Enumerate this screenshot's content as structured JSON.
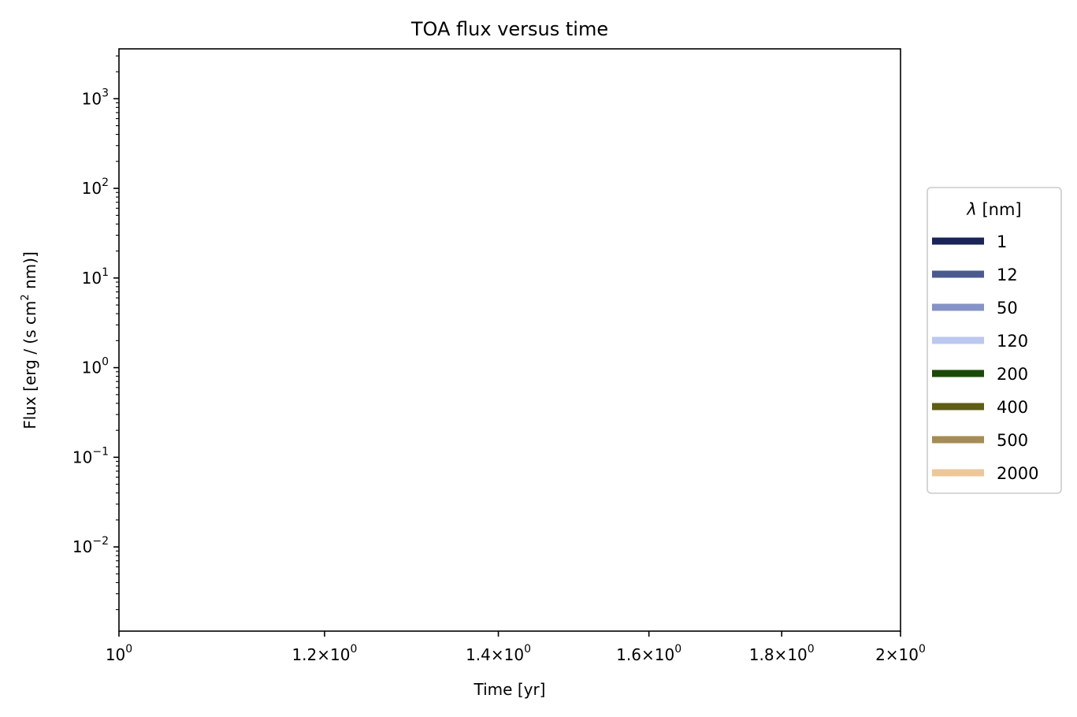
{
  "chart_data": {
    "type": "line",
    "title": "TOA flux versus time",
    "xlabel": "Time [yr]",
    "ylabel_parts": [
      "Flux [erg / (s cm",
      "2",
      " nm)]"
    ],
    "x_scale": "log",
    "y_scale": "log",
    "xlim": [
      1,
      2
    ],
    "ylim": [
      0.00115,
      3600
    ],
    "x_ticks": [
      {
        "value": 1,
        "mantissa": "",
        "exponent": "0"
      },
      {
        "value": 1.2,
        "mantissa": "1.2",
        "exponent": "0"
      },
      {
        "value": 1.4,
        "mantissa": "1.4",
        "exponent": "0"
      },
      {
        "value": 1.6,
        "mantissa": "1.6",
        "exponent": "0"
      },
      {
        "value": 1.8,
        "mantissa": "1.8",
        "exponent": "0"
      },
      {
        "value": 2,
        "mantissa": "2",
        "exponent": "0"
      }
    ],
    "y_ticks": [
      {
        "value": 0.01,
        "exponent": "−2"
      },
      {
        "value": 0.1,
        "exponent": "−1"
      },
      {
        "value": 1,
        "exponent": "0"
      },
      {
        "value": 10,
        "exponent": "1"
      },
      {
        "value": 100,
        "exponent": "2"
      },
      {
        "value": 1000,
        "exponent": "3"
      }
    ],
    "tick_base": "10",
    "times_symbol": "×",
    "grid": false,
    "legend": {
      "placement": "right-outside",
      "title_symbol": "λ",
      "title_unit": " [nm]"
    },
    "series": [
      {
        "name": "1",
        "color": "#1a2456",
        "x": [],
        "y": []
      },
      {
        "name": "12",
        "color": "#4a5a8f",
        "x": [],
        "y": []
      },
      {
        "name": "50",
        "color": "#8593c6",
        "x": [],
        "y": []
      },
      {
        "name": "120",
        "color": "#bdc8ef",
        "x": [],
        "y": []
      },
      {
        "name": "200",
        "color": "#1a4a08",
        "x": [],
        "y": []
      },
      {
        "name": "400",
        "color": "#5e5e14",
        "x": [],
        "y": []
      },
      {
        "name": "500",
        "color": "#a48c54",
        "x": [],
        "y": []
      },
      {
        "name": "2000",
        "color": "#edc799",
        "x": [],
        "y": []
      }
    ]
  }
}
